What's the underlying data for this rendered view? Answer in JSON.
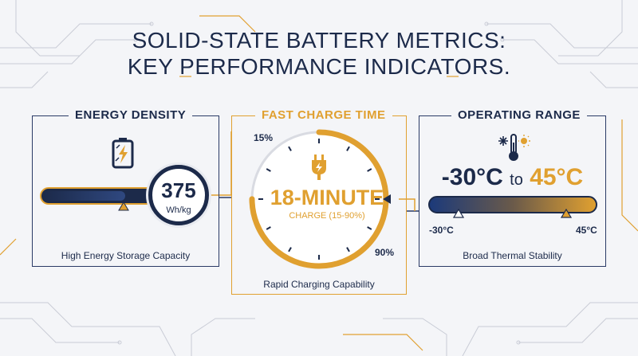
{
  "title": {
    "line1": "SOLID-STATE BATTERY METRICS:",
    "line2": "KEY PERFORMANCE INDICATORS."
  },
  "energy_density": {
    "heading": "ENERGY DENSITY",
    "value": "375",
    "unit": "Wh/kg",
    "caption": "High Energy Storage Capacity",
    "icon": "battery-charging-icon",
    "fill_fraction": 0.68
  },
  "fast_charge": {
    "heading": "FAST CHARGE TIME",
    "value": "18-MINUTE",
    "subtext": "CHARGE (15-90%)",
    "start_label": "15%",
    "end_label": "90%",
    "caption": "Rapid Charging Capability",
    "icon": "plug-bolt-icon",
    "progress_fraction": 0.75
  },
  "operating_range": {
    "heading": "OPERATING RANGE",
    "range_low": "-30°C",
    "range_to": "to",
    "range_high": "45°C",
    "min_label": "-30°C",
    "max_label": "45°C",
    "caption": "Broad Thermal Stability",
    "icon": "thermometer-snow-sun-icon"
  },
  "colors": {
    "navy": "#1c2a4a",
    "gold": "#e0a030",
    "background": "#f4f5f8"
  }
}
